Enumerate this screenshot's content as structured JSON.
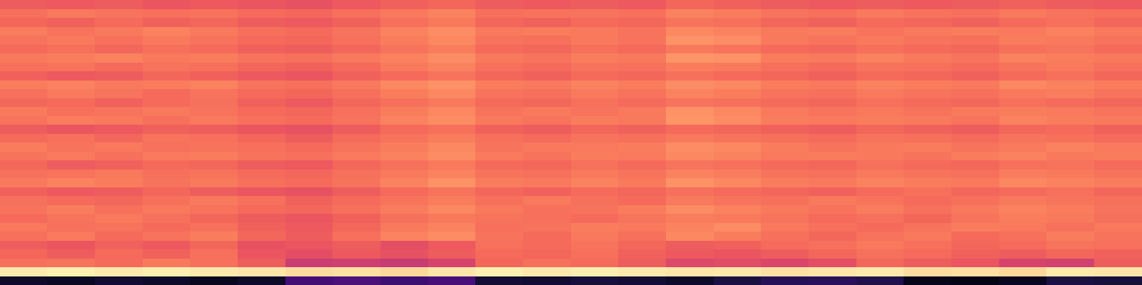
{
  "chart_data": {
    "type": "heatmap",
    "tick_labels": false,
    "value_range": [
      0,
      1
    ],
    "cells": [
      [
        0.08,
        0.07,
        0.09,
        0.08,
        0.06,
        0.08,
        0.22,
        0.24,
        0.21,
        0.23,
        0.1,
        0.09,
        0.11,
        0.1,
        0.08,
        0.12,
        0.15,
        0.16,
        0.14,
        0.05,
        0.04,
        0.06,
        0.12,
        0.11
      ],
      [
        0.96,
        0.97,
        0.96,
        0.97,
        0.96,
        0.95,
        0.93,
        0.94,
        0.92,
        0.95,
        0.97,
        0.96,
        0.97,
        0.96,
        0.95,
        0.96,
        0.94,
        0.95,
        0.96,
        0.93,
        0.94,
        0.92,
        0.96,
        0.95
      ],
      [
        0.7,
        0.71,
        0.69,
        0.72,
        0.7,
        0.66,
        0.55,
        0.56,
        0.54,
        0.58,
        0.68,
        0.7,
        0.69,
        0.66,
        0.6,
        0.61,
        0.59,
        0.62,
        0.68,
        0.66,
        0.64,
        0.58,
        0.57,
        0.66
      ],
      [
        0.68,
        0.66,
        0.69,
        0.67,
        0.7,
        0.64,
        0.62,
        0.65,
        0.63,
        0.66,
        0.69,
        0.68,
        0.7,
        0.67,
        0.65,
        0.64,
        0.66,
        0.68,
        0.7,
        0.69,
        0.67,
        0.66,
        0.68,
        0.67
      ],
      [
        0.66,
        0.64,
        0.67,
        0.65,
        0.68,
        0.63,
        0.64,
        0.66,
        0.62,
        0.65,
        0.7,
        0.69,
        0.71,
        0.68,
        0.66,
        0.67,
        0.69,
        0.7,
        0.72,
        0.7,
        0.68,
        0.69,
        0.71,
        0.7
      ],
      [
        0.7,
        0.72,
        0.69,
        0.71,
        0.73,
        0.68,
        0.66,
        0.7,
        0.74,
        0.76,
        0.71,
        0.69,
        0.72,
        0.7,
        0.75,
        0.73,
        0.7,
        0.68,
        0.71,
        0.72,
        0.69,
        0.7,
        0.73,
        0.71
      ],
      [
        0.72,
        0.7,
        0.71,
        0.69,
        0.7,
        0.67,
        0.65,
        0.68,
        0.72,
        0.74,
        0.7,
        0.71,
        0.73,
        0.72,
        0.74,
        0.76,
        0.72,
        0.7,
        0.69,
        0.71,
        0.73,
        0.72,
        0.7,
        0.72
      ],
      [
        0.69,
        0.71,
        0.72,
        0.7,
        0.68,
        0.66,
        0.64,
        0.67,
        0.7,
        0.72,
        0.71,
        0.7,
        0.69,
        0.71,
        0.73,
        0.72,
        0.71,
        0.69,
        0.7,
        0.68,
        0.71,
        0.73,
        0.72,
        0.7
      ],
      [
        0.71,
        0.73,
        0.7,
        0.72,
        0.71,
        0.69,
        0.68,
        0.7,
        0.73,
        0.75,
        0.72,
        0.7,
        0.71,
        0.73,
        0.76,
        0.74,
        0.72,
        0.71,
        0.73,
        0.7,
        0.72,
        0.74,
        0.73,
        0.71
      ],
      [
        0.7,
        0.69,
        0.68,
        0.7,
        0.72,
        0.7,
        0.67,
        0.69,
        0.71,
        0.73,
        0.7,
        0.72,
        0.7,
        0.69,
        0.72,
        0.71,
        0.7,
        0.72,
        0.71,
        0.69,
        0.7,
        0.72,
        0.71,
        0.7
      ],
      [
        0.67,
        0.65,
        0.66,
        0.68,
        0.66,
        0.64,
        0.63,
        0.66,
        0.69,
        0.71,
        0.68,
        0.67,
        0.69,
        0.68,
        0.7,
        0.69,
        0.68,
        0.67,
        0.69,
        0.7,
        0.68,
        0.69,
        0.7,
        0.68
      ],
      [
        0.72,
        0.74,
        0.73,
        0.71,
        0.72,
        0.7,
        0.69,
        0.71,
        0.74,
        0.77,
        0.73,
        0.72,
        0.74,
        0.72,
        0.77,
        0.75,
        0.73,
        0.72,
        0.74,
        0.73,
        0.72,
        0.75,
        0.74,
        0.73
      ],
      [
        0.7,
        0.71,
        0.72,
        0.7,
        0.71,
        0.69,
        0.68,
        0.7,
        0.72,
        0.74,
        0.71,
        0.7,
        0.72,
        0.71,
        0.74,
        0.73,
        0.71,
        0.7,
        0.72,
        0.71,
        0.7,
        0.73,
        0.72,
        0.71
      ],
      [
        0.68,
        0.66,
        0.67,
        0.69,
        0.68,
        0.66,
        0.65,
        0.68,
        0.7,
        0.72,
        0.69,
        0.68,
        0.7,
        0.69,
        0.71,
        0.7,
        0.69,
        0.68,
        0.7,
        0.69,
        0.68,
        0.7,
        0.71,
        0.69
      ],
      [
        0.71,
        0.72,
        0.7,
        0.72,
        0.73,
        0.71,
        0.7,
        0.72,
        0.74,
        0.76,
        0.72,
        0.71,
        0.73,
        0.72,
        0.75,
        0.74,
        0.72,
        0.73,
        0.72,
        0.71,
        0.73,
        0.74,
        0.72,
        0.73
      ],
      [
        0.73,
        0.71,
        0.72,
        0.7,
        0.71,
        0.7,
        0.69,
        0.71,
        0.73,
        0.75,
        0.71,
        0.72,
        0.72,
        0.73,
        0.76,
        0.75,
        0.73,
        0.71,
        0.72,
        0.73,
        0.71,
        0.72,
        0.74,
        0.72
      ],
      [
        0.69,
        0.7,
        0.68,
        0.71,
        0.7,
        0.68,
        0.66,
        0.69,
        0.71,
        0.73,
        0.7,
        0.69,
        0.71,
        0.7,
        0.72,
        0.71,
        0.7,
        0.69,
        0.71,
        0.7,
        0.69,
        0.71,
        0.7,
        0.69
      ],
      [
        0.66,
        0.64,
        0.65,
        0.67,
        0.66,
        0.64,
        0.63,
        0.66,
        0.69,
        0.7,
        0.67,
        0.66,
        0.68,
        0.67,
        0.69,
        0.68,
        0.67,
        0.66,
        0.68,
        0.67,
        0.66,
        0.68,
        0.69,
        0.67
      ],
      [
        0.71,
        0.73,
        0.72,
        0.7,
        0.72,
        0.7,
        0.69,
        0.71,
        0.74,
        0.76,
        0.72,
        0.71,
        0.73,
        0.72,
        0.78,
        0.76,
        0.73,
        0.72,
        0.73,
        0.72,
        0.71,
        0.74,
        0.73,
        0.72
      ],
      [
        0.72,
        0.7,
        0.71,
        0.72,
        0.71,
        0.69,
        0.68,
        0.7,
        0.73,
        0.75,
        0.71,
        0.72,
        0.71,
        0.72,
        0.77,
        0.75,
        0.72,
        0.71,
        0.72,
        0.71,
        0.72,
        0.73,
        0.72,
        0.71
      ],
      [
        0.68,
        0.69,
        0.67,
        0.69,
        0.7,
        0.67,
        0.65,
        0.68,
        0.7,
        0.72,
        0.69,
        0.68,
        0.7,
        0.69,
        0.71,
        0.7,
        0.69,
        0.68,
        0.7,
        0.69,
        0.68,
        0.7,
        0.69,
        0.68
      ],
      [
        0.7,
        0.72,
        0.71,
        0.69,
        0.71,
        0.69,
        0.68,
        0.7,
        0.73,
        0.75,
        0.71,
        0.7,
        0.72,
        0.71,
        0.74,
        0.73,
        0.71,
        0.7,
        0.72,
        0.71,
        0.7,
        0.72,
        0.73,
        0.71
      ],
      [
        0.73,
        0.74,
        0.72,
        0.73,
        0.74,
        0.71,
        0.7,
        0.72,
        0.75,
        0.77,
        0.73,
        0.72,
        0.74,
        0.73,
        0.76,
        0.75,
        0.73,
        0.72,
        0.74,
        0.73,
        0.72,
        0.75,
        0.74,
        0.73
      ],
      [
        0.67,
        0.65,
        0.66,
        0.68,
        0.67,
        0.65,
        0.64,
        0.67,
        0.69,
        0.71,
        0.68,
        0.67,
        0.69,
        0.68,
        0.7,
        0.69,
        0.68,
        0.67,
        0.69,
        0.68,
        0.67,
        0.69,
        0.7,
        0.68
      ],
      [
        0.7,
        0.71,
        0.69,
        0.71,
        0.7,
        0.68,
        0.67,
        0.69,
        0.72,
        0.74,
        0.7,
        0.69,
        0.71,
        0.7,
        0.73,
        0.72,
        0.7,
        0.69,
        0.71,
        0.7,
        0.69,
        0.71,
        0.72,
        0.7
      ],
      [
        0.72,
        0.73,
        0.74,
        0.72,
        0.73,
        0.71,
        0.7,
        0.72,
        0.74,
        0.76,
        0.72,
        0.71,
        0.73,
        0.72,
        0.78,
        0.77,
        0.73,
        0.72,
        0.74,
        0.72,
        0.71,
        0.74,
        0.73,
        0.72
      ],
      [
        0.69,
        0.7,
        0.68,
        0.7,
        0.69,
        0.67,
        0.66,
        0.68,
        0.71,
        0.73,
        0.69,
        0.68,
        0.7,
        0.69,
        0.72,
        0.71,
        0.69,
        0.68,
        0.7,
        0.69,
        0.68,
        0.7,
        0.71,
        0.69
      ],
      [
        0.71,
        0.72,
        0.7,
        0.72,
        0.71,
        0.69,
        0.68,
        0.7,
        0.73,
        0.75,
        0.71,
        0.7,
        0.72,
        0.71,
        0.77,
        0.76,
        0.72,
        0.71,
        0.72,
        0.71,
        0.7,
        0.73,
        0.72,
        0.71
      ],
      [
        0.73,
        0.71,
        0.72,
        0.74,
        0.72,
        0.7,
        0.69,
        0.71,
        0.74,
        0.76,
        0.72,
        0.73,
        0.72,
        0.71,
        0.75,
        0.74,
        0.72,
        0.73,
        0.71,
        0.72,
        0.73,
        0.72,
        0.74,
        0.72
      ],
      [
        0.68,
        0.67,
        0.69,
        0.67,
        0.68,
        0.66,
        0.65,
        0.67,
        0.7,
        0.72,
        0.68,
        0.67,
        0.69,
        0.68,
        0.71,
        0.7,
        0.68,
        0.67,
        0.69,
        0.68,
        0.67,
        0.69,
        0.7,
        0.68
      ],
      [
        0.7,
        0.72,
        0.71,
        0.7,
        0.71,
        0.69,
        0.68,
        0.7,
        0.72,
        0.74,
        0.7,
        0.71,
        0.71,
        0.7,
        0.74,
        0.73,
        0.71,
        0.7,
        0.72,
        0.71,
        0.7,
        0.72,
        0.71,
        0.7
      ],
      [
        0.66,
        0.65,
        0.66,
        0.64,
        0.65,
        0.64,
        0.63,
        0.65,
        0.67,
        0.68,
        0.66,
        0.65,
        0.66,
        0.65,
        0.68,
        0.67,
        0.66,
        0.65,
        0.66,
        0.65,
        0.66,
        0.67,
        0.66,
        0.65
      ]
    ]
  }
}
